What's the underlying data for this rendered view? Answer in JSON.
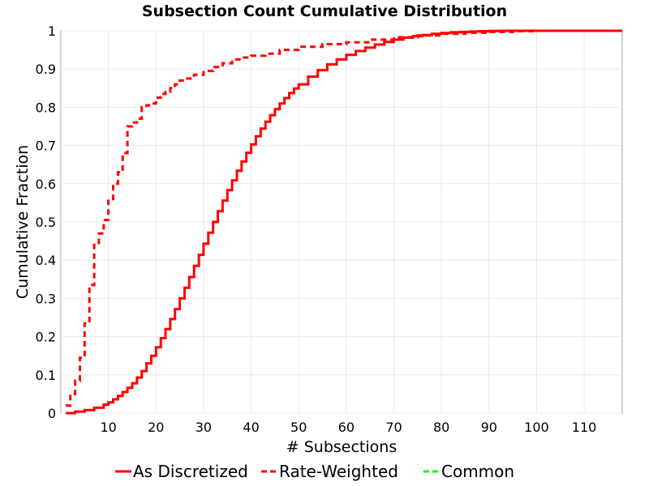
{
  "chart_data": {
    "type": "line",
    "title": "Subsection Count Cumulative Distribution",
    "xlabel": "# Subsections",
    "ylabel": "Cumulative Fraction",
    "xlim": [
      0,
      118
    ],
    "ylim": [
      0,
      1
    ],
    "xticks": [
      10,
      20,
      30,
      40,
      50,
      60,
      70,
      80,
      90,
      100,
      110
    ],
    "yticks": [
      0,
      0.1,
      0.2,
      0.3,
      0.4,
      0.5,
      0.6,
      0.7,
      0.8,
      0.9,
      1
    ],
    "ytick_labels": [
      "0",
      "0.1",
      "0.2",
      "0.3",
      "0.4",
      "0.5",
      "0.6",
      "0.7",
      "0.8",
      "0.9",
      "1"
    ],
    "grid": true,
    "legend_position": "bottom",
    "series": [
      {
        "name": "As Discretized",
        "color": "#ff0000",
        "style": "solid-step",
        "x": [
          1,
          3,
          5,
          7,
          9,
          10,
          11,
          12,
          13,
          14,
          15,
          16,
          17,
          18,
          19,
          20,
          21,
          22,
          23,
          24,
          25,
          26,
          27,
          28,
          29,
          30,
          31,
          32,
          33,
          34,
          35,
          36,
          37,
          38,
          39,
          40,
          41,
          42,
          43,
          44,
          45,
          46,
          47,
          48,
          49,
          50,
          52,
          54,
          56,
          58,
          60,
          62,
          64,
          66,
          68,
          70,
          72,
          74,
          76,
          78,
          80,
          82,
          84,
          86,
          88,
          90,
          93,
          96,
          100,
          105,
          110,
          118
        ],
        "y": [
          0.0,
          0.004,
          0.008,
          0.014,
          0.022,
          0.028,
          0.036,
          0.045,
          0.055,
          0.066,
          0.078,
          0.093,
          0.11,
          0.13,
          0.15,
          0.172,
          0.196,
          0.22,
          0.246,
          0.272,
          0.3,
          0.328,
          0.356,
          0.385,
          0.414,
          0.443,
          0.472,
          0.5,
          0.528,
          0.556,
          0.583,
          0.609,
          0.634,
          0.658,
          0.681,
          0.703,
          0.724,
          0.744,
          0.762,
          0.779,
          0.795,
          0.81,
          0.824,
          0.837,
          0.849,
          0.86,
          0.88,
          0.897,
          0.912,
          0.925,
          0.937,
          0.947,
          0.956,
          0.964,
          0.971,
          0.977,
          0.982,
          0.986,
          0.989,
          0.992,
          0.994,
          0.996,
          0.997,
          0.998,
          0.999,
          0.9995,
          1.0,
          1.0,
          1.0,
          1.0,
          1.0,
          1.0
        ]
      },
      {
        "name": "Rate-Weighted",
        "color": "#ff0000",
        "style": "dashed-step",
        "x": [
          1,
          2,
          3,
          4,
          5,
          6,
          7,
          8,
          9,
          10,
          11,
          12,
          13,
          14,
          15,
          16,
          17,
          18,
          19,
          20,
          21,
          22,
          23,
          24,
          25,
          26,
          28,
          30,
          32,
          34,
          36,
          38,
          40,
          43,
          46,
          50,
          55,
          60,
          65,
          70,
          75,
          80,
          85,
          90,
          95,
          100,
          110,
          118
        ],
        "y": [
          0.02,
          0.05,
          0.085,
          0.145,
          0.235,
          0.335,
          0.445,
          0.47,
          0.505,
          0.555,
          0.6,
          0.63,
          0.68,
          0.75,
          0.76,
          0.77,
          0.8,
          0.805,
          0.81,
          0.825,
          0.835,
          0.84,
          0.85,
          0.86,
          0.87,
          0.875,
          0.885,
          0.895,
          0.905,
          0.915,
          0.925,
          0.93,
          0.935,
          0.94,
          0.95,
          0.958,
          0.965,
          0.97,
          0.977,
          0.983,
          0.988,
          0.992,
          0.995,
          0.997,
          0.999,
          1.0,
          1.0,
          1.0
        ]
      },
      {
        "name": "Common",
        "color": "#00ff00",
        "style": "dashed",
        "x": [],
        "y": []
      }
    ]
  }
}
